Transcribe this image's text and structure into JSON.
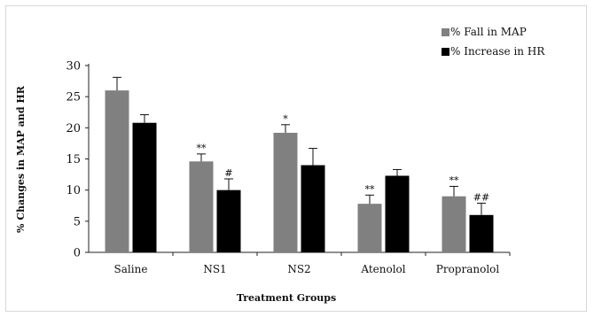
{
  "chart_data": {
    "type": "bar",
    "title": "",
    "xlabel": "Treatment Groups",
    "ylabel": "% Changes in MAP and HR",
    "ylim": [
      0,
      30
    ],
    "yticks": [
      "0",
      "5",
      "10",
      "15",
      "20",
      "25",
      "30"
    ],
    "categories": [
      "Saline",
      "NS1",
      "NS2",
      "Atenolol",
      "Propranolol"
    ],
    "legend_position": "top-right",
    "series": [
      {
        "name": "% Fall in MAP",
        "color": "#808080",
        "values": [
          26.0,
          14.6,
          19.2,
          7.8,
          9.0
        ],
        "errors": [
          2.1,
          1.2,
          1.3,
          1.4,
          1.6
        ],
        "annotations": [
          "",
          "**",
          "*",
          "**",
          "**"
        ]
      },
      {
        "name": "% Increase in HR",
        "color": "#000000",
        "values": [
          20.8,
          10.0,
          14.0,
          12.3,
          6.0
        ],
        "errors": [
          1.3,
          1.8,
          2.7,
          1.0,
          1.9
        ],
        "annotations": [
          "",
          "#",
          "",
          "",
          "##"
        ]
      }
    ]
  }
}
